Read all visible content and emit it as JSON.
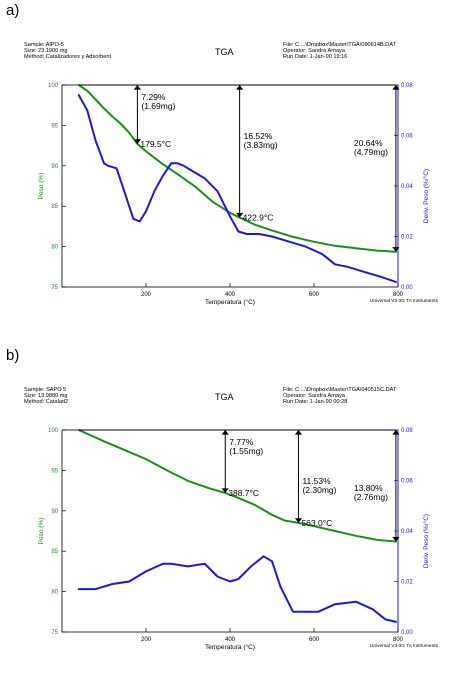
{
  "chart_data": [
    {
      "panel_label": "a)",
      "type": "line",
      "title": "TGA",
      "header_left": [
        "Sample: AlPO-5",
        "Size:   23.1900 mg",
        "Method: Catalizadores y Adsorbent"
      ],
      "header_right": [
        "File: C:...\\Dropbox\\Master\\TGA\\090614B.DAT",
        "Operator: Sandra Amaya",
        "Run Date: 1-Jan-90 19:16"
      ],
      "xlabel": "Temperatura (°C)",
      "ylabel": "Peso (%)",
      "y2label": "Deriv. Peso (%/°C)",
      "xlim": [
        0,
        800
      ],
      "ylim": [
        75,
        100
      ],
      "y2lim": [
        0.0,
        0.08
      ],
      "xticks": [
        "200",
        "400",
        "600",
        "800"
      ],
      "yticks": [
        "75",
        "80",
        "85",
        "90",
        "95",
        "100"
      ],
      "y2ticks": [
        "0.00",
        "0.02",
        "0.04",
        "0.06",
        "0.08"
      ],
      "footer": "Universal V3.0G TA Instruments",
      "colors": {
        "weight": "#1e8c1e",
        "deriv": "#1a1adc",
        "right_axis": "#1a1adc",
        "left_axis": "#1e8c1e"
      },
      "series": [
        {
          "axis": "left",
          "x": [
            40,
            60,
            80,
            100,
            120,
            140,
            160,
            179.5,
            200,
            240,
            280,
            320,
            360,
            400,
            422.9,
            460,
            500,
            550,
            600,
            650,
            700,
            750,
            795
          ],
          "values": [
            100,
            99.3,
            98.2,
            97.1,
            96.1,
            95.2,
            94.1,
            92.7,
            91.8,
            90.2,
            88.8,
            87.3,
            85.5,
            84.2,
            83.6,
            82.7,
            82.0,
            81.2,
            80.6,
            80.1,
            79.8,
            79.5,
            79.36
          ]
        },
        {
          "axis": "right",
          "x": [
            40,
            60,
            80,
            100,
            110,
            130,
            150,
            170,
            185,
            200,
            220,
            240,
            260,
            275,
            290,
            310,
            340,
            370,
            400,
            420,
            440,
            470,
            500,
            540,
            580,
            620,
            650,
            680,
            720,
            760,
            795
          ],
          "values": [
            0.076,
            0.07,
            0.058,
            0.049,
            0.048,
            0.047,
            0.037,
            0.027,
            0.026,
            0.03,
            0.038,
            0.044,
            0.049,
            0.049,
            0.048,
            0.046,
            0.043,
            0.038,
            0.028,
            0.022,
            0.021,
            0.021,
            0.02,
            0.018,
            0.016,
            0.013,
            0.009,
            0.008,
            0.006,
            0.004,
            0.002
          ]
        }
      ],
      "annotations": [
        {
          "x": 179.5,
          "step": "7.29%",
          "mass": "(1.69mg)",
          "point": "179.5°C"
        },
        {
          "x": 422.9,
          "step": "16.52%",
          "mass": "(3.83mg)",
          "point": "422.9°C"
        },
        {
          "x": 795,
          "step": "20.64%",
          "mass": "(4.79mg)",
          "point": ""
        }
      ]
    },
    {
      "panel_label": "b)",
      "type": "line",
      "title": "TGA",
      "header_left": [
        "Sample: SAPO 5",
        "Size:   19.9880 mg",
        "Method: Catalad2"
      ],
      "header_right": [
        "File: C:...\\Dropbox\\Master\\TGA\\040515C.DAT",
        "Operator: Sandra Amaya",
        "Run Date: 1-Jan-90 00:28"
      ],
      "xlabel": "Temperatura (°C)",
      "ylabel": "Peso (%)",
      "y2label": "Deriv. Peso (%/°C)",
      "xlim": [
        0,
        800
      ],
      "ylim": [
        75,
        100
      ],
      "y2lim": [
        0.0,
        0.08
      ],
      "xticks": [
        "200",
        "400",
        "600",
        "800"
      ],
      "yticks": [
        "75",
        "80",
        "85",
        "90",
        "95",
        "100"
      ],
      "y2ticks": [
        "0.00",
        "0.02",
        "0.04",
        "0.06",
        "0.08"
      ],
      "footer": "Universal V3.0G TA Instruments",
      "colors": {
        "weight": "#1e8c1e",
        "deriv": "#1a1adc",
        "right_axis": "#1a1adc",
        "left_axis": "#1e8c1e"
      },
      "series": [
        {
          "axis": "left",
          "x": [
            40,
            100,
            150,
            200,
            250,
            300,
            350,
            388.7,
            420,
            460,
            500,
            530,
            563.0,
            600,
            650,
            700,
            750,
            795
          ],
          "values": [
            100,
            98.6,
            97.5,
            96.4,
            95.0,
            93.7,
            92.8,
            92.2,
            91.6,
            90.7,
            89.5,
            88.8,
            88.5,
            88.1,
            87.5,
            86.9,
            86.4,
            86.2
          ]
        },
        {
          "axis": "right",
          "x": [
            40,
            80,
            120,
            160,
            200,
            240,
            260,
            300,
            340,
            370,
            400,
            420,
            450,
            480,
            500,
            520,
            550,
            580,
            610,
            650,
            700,
            740,
            770,
            795
          ],
          "values": [
            0.017,
            0.017,
            0.019,
            0.02,
            0.024,
            0.027,
            0.027,
            0.026,
            0.027,
            0.022,
            0.02,
            0.021,
            0.026,
            0.03,
            0.028,
            0.018,
            0.008,
            0.008,
            0.008,
            0.011,
            0.012,
            0.009,
            0.005,
            0.004
          ]
        }
      ],
      "annotations": [
        {
          "x": 388.7,
          "step": "7.77%",
          "mass": "(1.55mg)",
          "point": "388.7°C"
        },
        {
          "x": 563.0,
          "step": "11.53%",
          "mass": "(2.30mg)",
          "point": "563.0°C"
        },
        {
          "x": 795,
          "step": "13.80%",
          "mass": "(2.76mg)",
          "point": ""
        }
      ]
    }
  ]
}
